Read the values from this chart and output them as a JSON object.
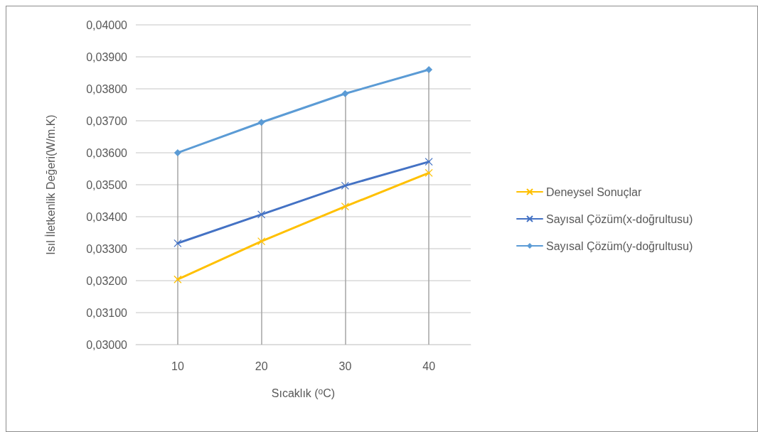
{
  "chart_data": {
    "type": "line",
    "xlabel": "Sıcaklık ($^{o}$C)",
    "ylabel": "Isıl İletkenlik Değeri(W/m.K)",
    "categories": [
      "10",
      "20",
      "30",
      "40"
    ],
    "series": [
      {
        "name": "Deneysel Sonuçlar",
        "color": "#ffc000",
        "marker": "cross",
        "values": [
          0.03204,
          0.03323,
          0.03432,
          0.03537
        ]
      },
      {
        "name": "Sayısal Çözüm(x-doğrultusu)",
        "color": "#4472c4",
        "marker": "cross",
        "values": [
          0.03317,
          0.03407,
          0.03497,
          0.03572
        ]
      },
      {
        "name": "Sayısal Çözüm(y-doğrultusu)",
        "color": "#5b9bd5",
        "marker": "diamond",
        "values": [
          0.036,
          0.03695,
          0.03785,
          0.0386
        ]
      }
    ],
    "ylim": [
      0.03,
      0.04
    ],
    "yticks": [
      {
        "value": 0.03,
        "label": "0,03000"
      },
      {
        "value": 0.031,
        "label": "0,03100"
      },
      {
        "value": 0.032,
        "label": "0,03200"
      },
      {
        "value": 0.033,
        "label": "0,03300"
      },
      {
        "value": 0.034,
        "label": "0,03400"
      },
      {
        "value": 0.035,
        "label": "0,03500"
      },
      {
        "value": 0.036,
        "label": "0,03600"
      },
      {
        "value": 0.037,
        "label": "0,03700"
      },
      {
        "value": 0.038,
        "label": "0,03800"
      },
      {
        "value": 0.039,
        "label": "0,03900"
      },
      {
        "value": 0.04,
        "label": "0,04000"
      }
    ],
    "ref_lines": [
      {
        "axis": "x",
        "value": "10",
        "color": "#a5a5a5"
      },
      {
        "axis": "x",
        "value": "20",
        "color": "#a5a5a5"
      },
      {
        "axis": "x",
        "value": "30",
        "color": "#a5a5a5"
      },
      {
        "axis": "x",
        "value": "40",
        "color": "#a5a5a5"
      }
    ],
    "grid": "y",
    "legend": "right",
    "line_style": "solid"
  }
}
